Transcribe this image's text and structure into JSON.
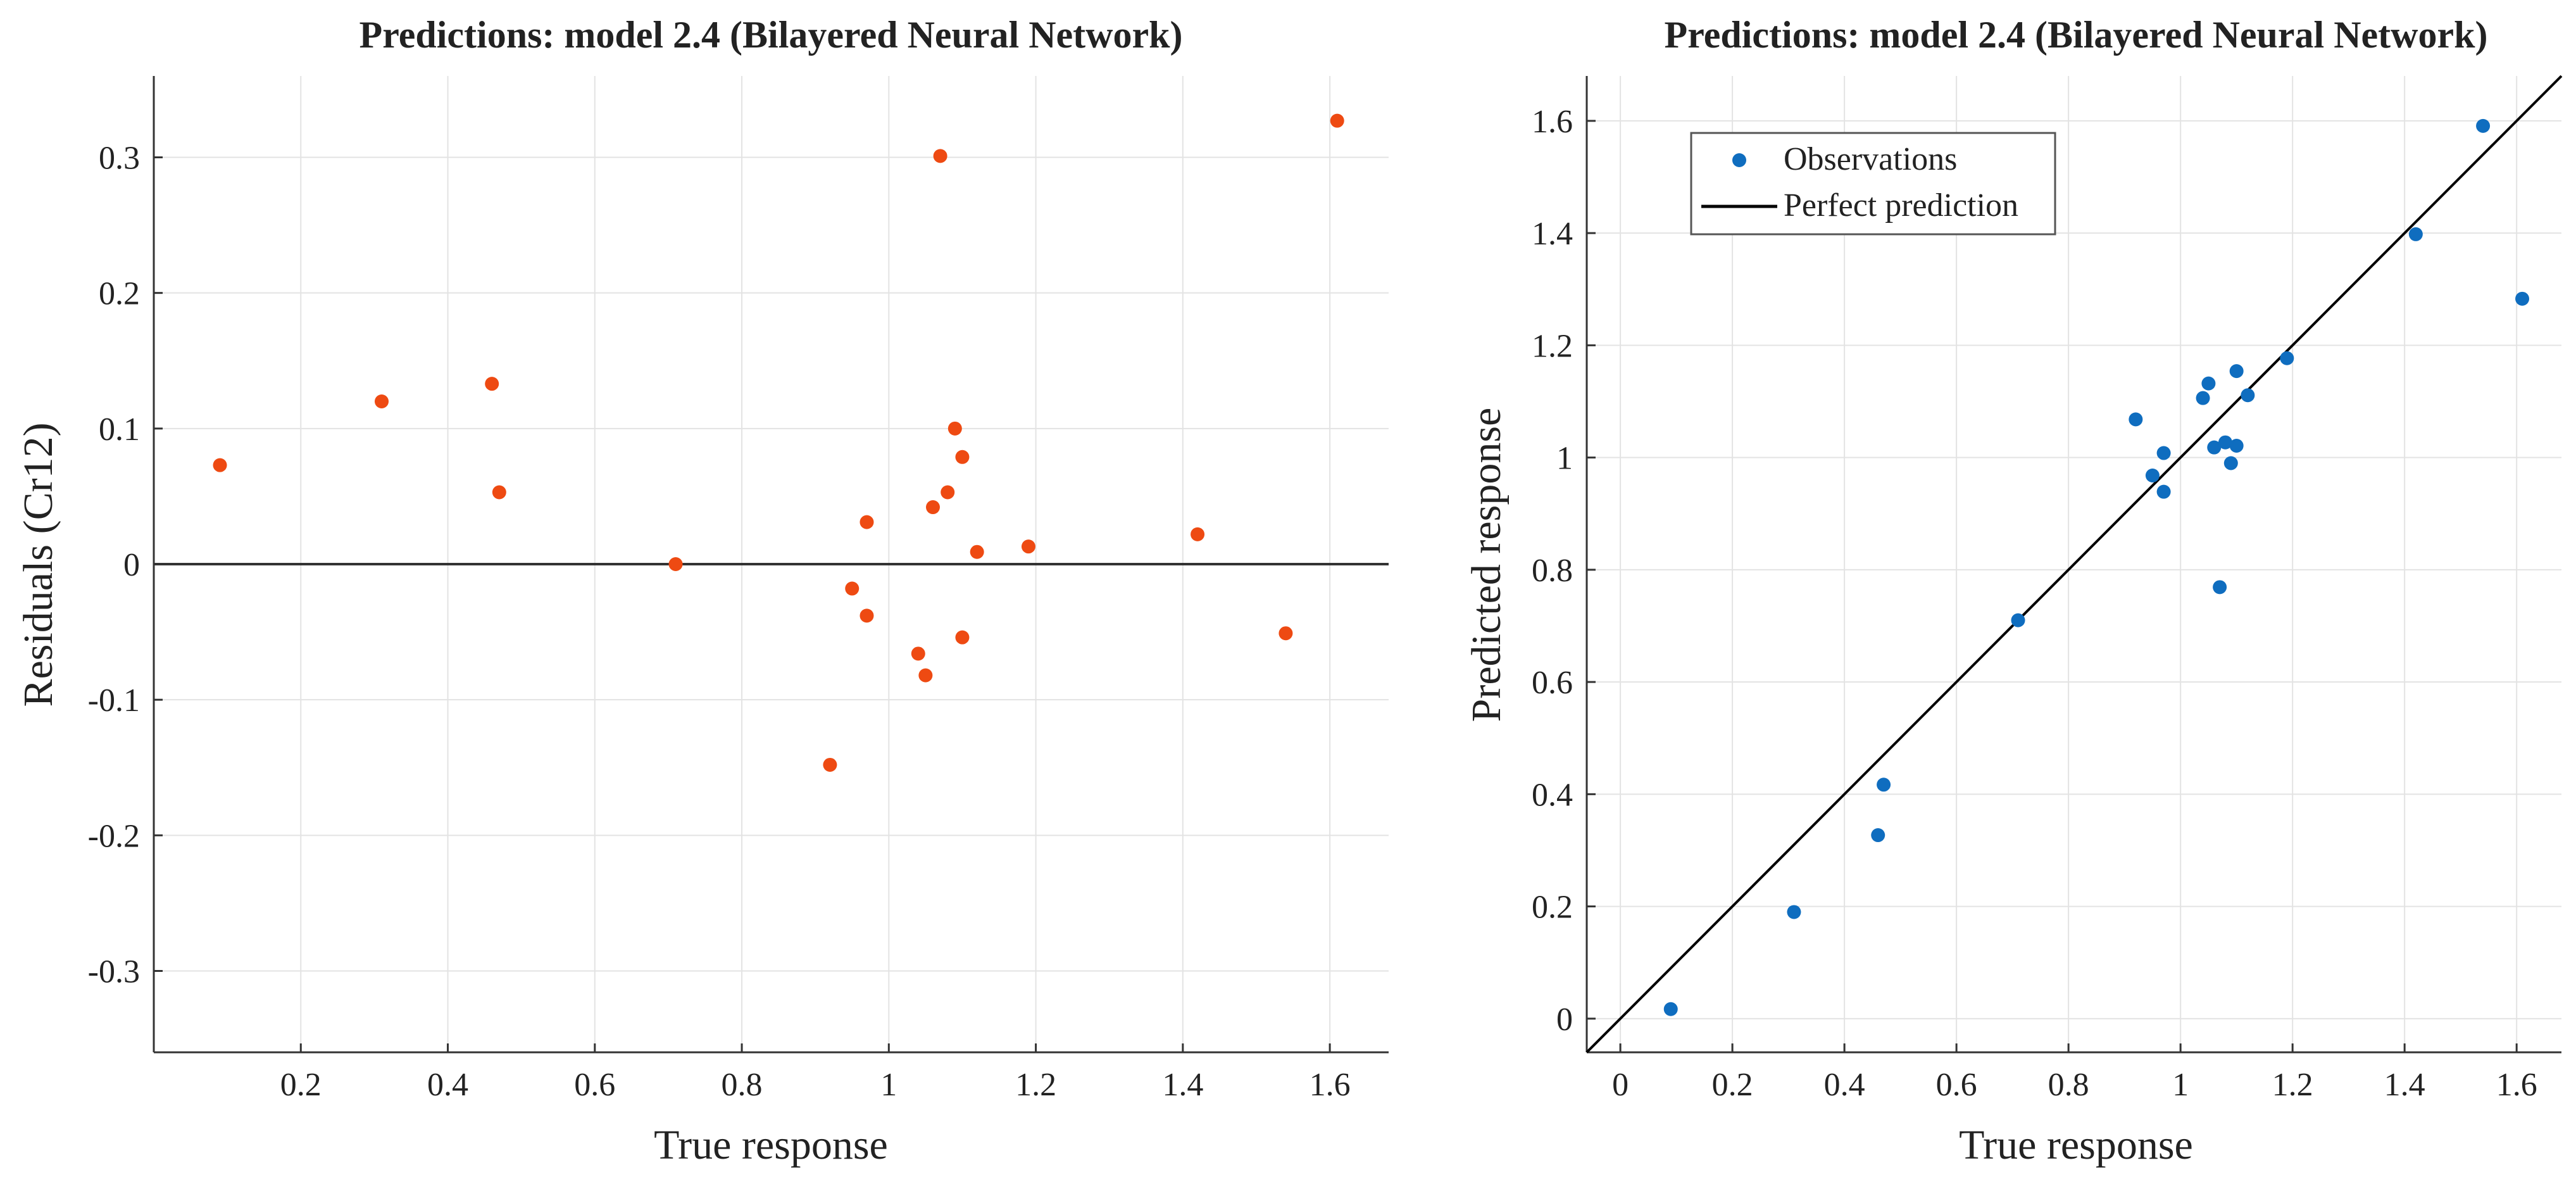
{
  "colors": {
    "residual_marker": "#ee4a12",
    "observation_marker": "#0f6dbf",
    "grid": "#e3e3e3",
    "axis": "#333333",
    "reference_line": "#000000"
  },
  "chart_data": [
    {
      "type": "scatter",
      "title": "Predictions: model 2.4 (Bilayered Neural Network)",
      "xlabel": "True response",
      "ylabel": "Residuals (Cr12)",
      "xlim": [
        0.0,
        1.68
      ],
      "ylim": [
        -0.36,
        0.36
      ],
      "xticks": [
        0.2,
        0.4,
        0.6,
        0.8,
        1.0,
        1.2,
        1.4,
        1.6
      ],
      "xtick_labels": [
        "0.2",
        "0.4",
        "0.6",
        "0.8",
        "1",
        "1.2",
        "1.4",
        "1.6"
      ],
      "yticks": [
        -0.3,
        -0.2,
        -0.1,
        0,
        0.1,
        0.2,
        0.3
      ],
      "ytick_labels": [
        "-0.3",
        "-0.2",
        "-0.1",
        "0",
        "0.1",
        "0.2",
        "0.3"
      ],
      "grid": true,
      "reference_line": {
        "type": "horizontal",
        "y": 0
      },
      "series": [
        {
          "name": "Residuals",
          "x": [
            0.09,
            0.31,
            0.46,
            0.47,
            0.71,
            0.92,
            0.95,
            0.97,
            0.97,
            1.04,
            1.05,
            1.06,
            1.07,
            1.08,
            1.09,
            1.1,
            1.1,
            1.12,
            1.19,
            1.42,
            1.54,
            1.61
          ],
          "y": [
            0.073,
            0.12,
            0.133,
            0.053,
            0.0,
            -0.148,
            -0.018,
            -0.038,
            0.031,
            -0.066,
            -0.082,
            0.042,
            0.301,
            0.053,
            0.1,
            0.079,
            -0.054,
            0.009,
            0.013,
            0.022,
            -0.051,
            0.327
          ]
        }
      ]
    },
    {
      "type": "scatter",
      "title": "Predictions: model 2.4 (Bilayered Neural Network)",
      "xlabel": "True response",
      "ylabel": "Predicted response",
      "xlim": [
        -0.06,
        1.68
      ],
      "ylim": [
        -0.06,
        1.68
      ],
      "xticks": [
        0,
        0.2,
        0.4,
        0.6,
        0.8,
        1.0,
        1.2,
        1.4,
        1.6
      ],
      "xtick_labels": [
        "0",
        "0.2",
        "0.4",
        "0.6",
        "0.8",
        "1",
        "1.2",
        "1.4",
        "1.6"
      ],
      "yticks": [
        0,
        0.2,
        0.4,
        0.6,
        0.8,
        1.0,
        1.2,
        1.4,
        1.6
      ],
      "ytick_labels": [
        "0",
        "0.2",
        "0.4",
        "0.6",
        "0.8",
        "1",
        "1.2",
        "1.4",
        "1.6"
      ],
      "grid": true,
      "legend": {
        "position": "top-left",
        "entries": [
          "Observations",
          "Perfect prediction"
        ]
      },
      "reference_line": {
        "type": "identity",
        "name": "Perfect prediction"
      },
      "series": [
        {
          "name": "Observations",
          "x": [
            0.09,
            0.31,
            0.46,
            0.47,
            0.71,
            0.92,
            0.95,
            0.97,
            0.97,
            1.04,
            1.05,
            1.06,
            1.07,
            1.08,
            1.09,
            1.1,
            1.1,
            1.12,
            1.19,
            1.42,
            1.54,
            1.61
          ],
          "y": [
            0.017,
            0.19,
            0.327,
            0.417,
            0.71,
            1.068,
            0.968,
            1.008,
            0.939,
            1.106,
            1.132,
            1.018,
            0.769,
            1.027,
            0.99,
            1.021,
            1.154,
            1.111,
            1.177,
            1.398,
            1.591,
            1.283
          ]
        }
      ]
    }
  ]
}
